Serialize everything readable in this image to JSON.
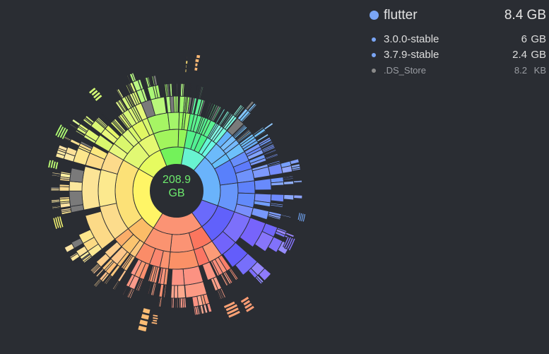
{
  "chart_data": {
    "type": "sunburst",
    "center_label": {
      "value": "208.9",
      "unit": "GB"
    },
    "rings": 6,
    "dominant_palette": [
      "#ffff6e",
      "#ffe08a",
      "#ff9e7f",
      "#7bb2ff",
      "#6aa0ff",
      "#7b7bff",
      "#7dfcd8",
      "#6ee9a8",
      "#b6f58a",
      "#d8f77a",
      "#7c7c7c"
    ]
  },
  "legend": {
    "selected": {
      "name": "flutter",
      "size": "8.4 GB",
      "color": "#7aa5f5"
    },
    "children": [
      {
        "name": "3.0.0-stable",
        "value": "6",
        "unit": "GB",
        "color": "#7aa5f5"
      },
      {
        "name": "3.7.9-stable",
        "value": "2.4",
        "unit": "GB",
        "color": "#7aa5f5"
      },
      {
        "name": ".DS_Store",
        "value": "8.2",
        "unit": "KB",
        "color": "#8a8a8a"
      }
    ]
  }
}
